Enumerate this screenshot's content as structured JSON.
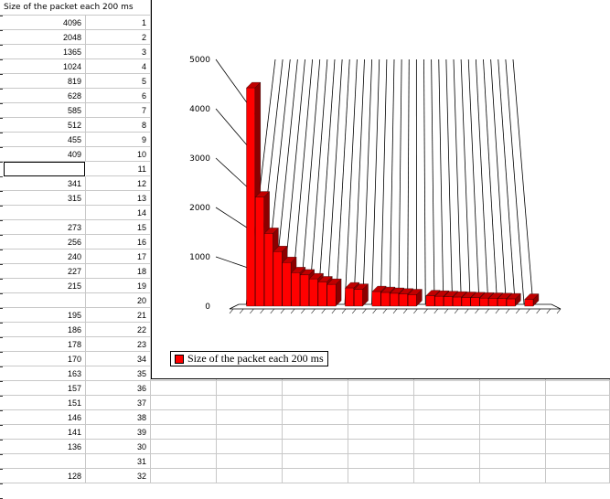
{
  "sheet": {
    "header_label": "Size of the packet each 200 ms",
    "rows": [
      {
        "a": "4096",
        "b": "1"
      },
      {
        "a": "2048",
        "b": "2"
      },
      {
        "a": "1365",
        "b": "3"
      },
      {
        "a": "1024",
        "b": "4"
      },
      {
        "a": "819",
        "b": "5"
      },
      {
        "a": "628",
        "b": "6"
      },
      {
        "a": "585",
        "b": "7"
      },
      {
        "a": "512",
        "b": "8"
      },
      {
        "a": "455",
        "b": "9"
      },
      {
        "a": "409",
        "b": "10"
      },
      {
        "a": "",
        "b": "11"
      },
      {
        "a": "341",
        "b": "12"
      },
      {
        "a": "315",
        "b": "13"
      },
      {
        "a": "",
        "b": "14"
      },
      {
        "a": "273",
        "b": "15"
      },
      {
        "a": "256",
        "b": "16"
      },
      {
        "a": "240",
        "b": "17"
      },
      {
        "a": "227",
        "b": "18"
      },
      {
        "a": "215",
        "b": "19"
      },
      {
        "a": "",
        "b": "20"
      },
      {
        "a": "195",
        "b": "21"
      },
      {
        "a": "186",
        "b": "22"
      },
      {
        "a": "178",
        "b": "23"
      },
      {
        "a": "170",
        "b": "34"
      },
      {
        "a": "163",
        "b": "35"
      },
      {
        "a": "157",
        "b": "36"
      },
      {
        "a": "151",
        "b": "37"
      },
      {
        "a": "146",
        "b": "38"
      },
      {
        "a": "141",
        "b": "39"
      },
      {
        "a": "136",
        "b": "30"
      },
      {
        "a": "",
        "b": "31"
      },
      {
        "a": "128",
        "b": "32"
      }
    ]
  },
  "chart_data": {
    "type": "bar",
    "series": [
      {
        "name": "Size of the packet each 200 ms",
        "values": [
          4096,
          2048,
          1365,
          1024,
          819,
          628,
          585,
          512,
          455,
          409,
          0,
          341,
          315,
          0,
          273,
          256,
          240,
          227,
          215,
          0,
          195,
          186,
          178,
          170,
          163,
          157,
          151,
          146,
          141,
          136,
          0,
          128
        ]
      }
    ],
    "yticks": [
      "0",
      "1000",
      "2000",
      "3000",
      "4000",
      "5000"
    ],
    "ylim": [
      0,
      5000
    ],
    "bar_color": "#ff0000",
    "legend": "bottom-left"
  }
}
